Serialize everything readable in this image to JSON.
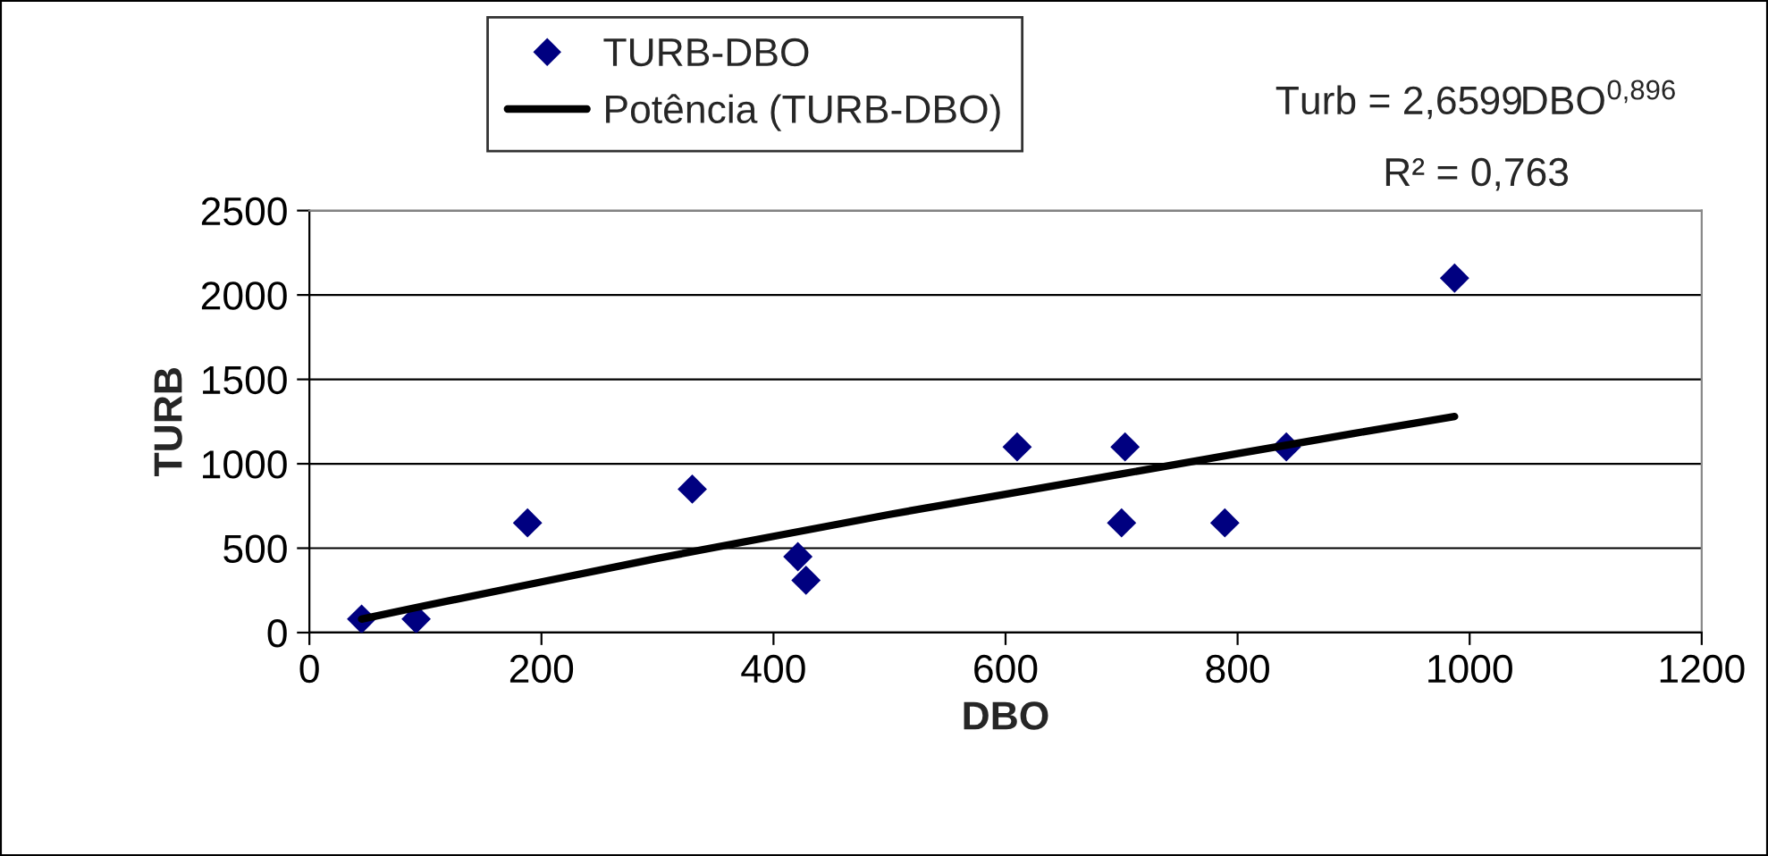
{
  "chart_data": {
    "type": "scatter",
    "xlabel": "DBO",
    "ylabel": "TURB",
    "annotations": [
      "Turb = 2,6599DBO$^{0,896}$",
      "R² = 0,763"
    ],
    "series": [
      {
        "name": "TURB-DBO",
        "color": "#000080",
        "marker": "diamond",
        "x": [
          45,
          92,
          188,
          330,
          421,
          428,
          610,
          700,
          703,
          789,
          842,
          987
        ],
        "values": [
          80,
          80,
          650,
          850,
          450,
          310,
          1100,
          650,
          1100,
          650,
          1100,
          2100
        ]
      },
      {
        "name": "Potência (TURB-DBO)",
        "type": "line",
        "color": "#000000",
        "marker": "none",
        "line_style": "solid",
        "x": [
          45,
          100,
          200,
          300,
          400,
          500,
          600,
          700,
          800,
          900,
          987
        ],
        "values": [
          80,
          160,
          300,
          440,
          570,
          700,
          820,
          940,
          1060,
          1180,
          1280
        ]
      }
    ],
    "xlim": [
      0,
      1200
    ],
    "xticks": [
      0,
      200,
      400,
      600,
      800,
      1000,
      1200
    ],
    "ylim": [
      0,
      2500
    ],
    "yticks": [
      0,
      500,
      1000,
      1500,
      2000,
      2500
    ],
    "grid": "y",
    "legend": "top"
  }
}
